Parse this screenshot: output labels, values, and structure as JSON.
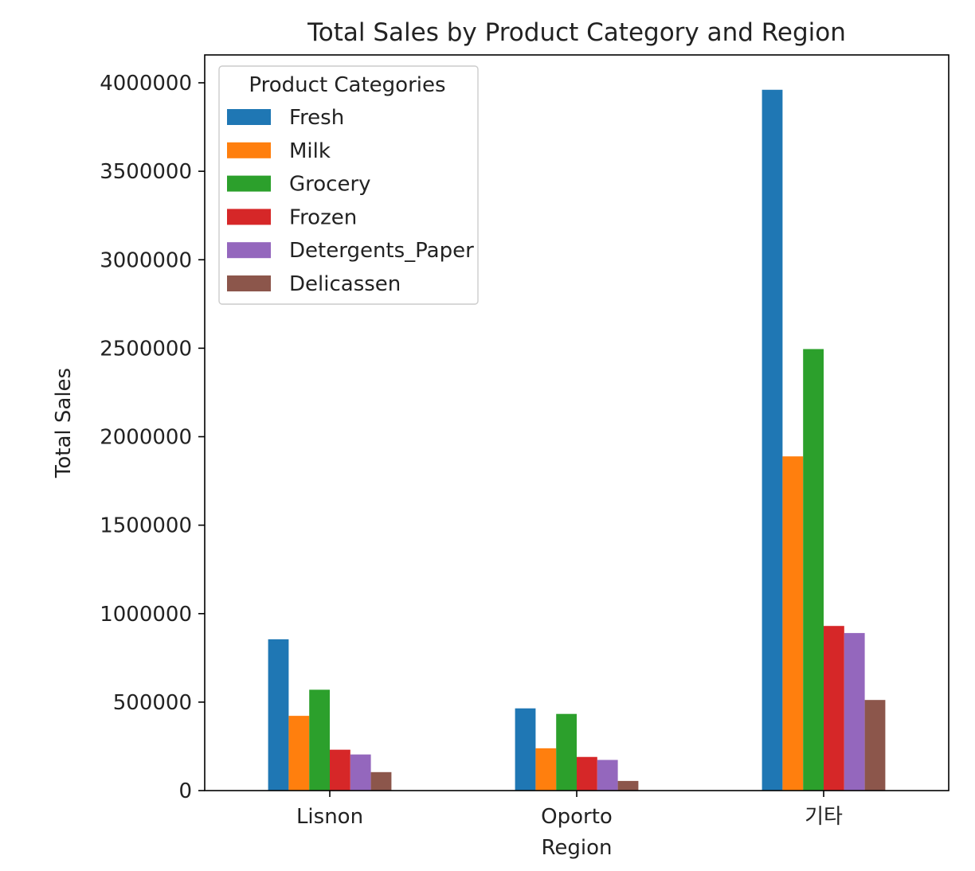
{
  "chart_data": {
    "type": "bar",
    "title": "Total Sales by Product Category and Region",
    "xlabel": "Region",
    "ylabel": "Total Sales",
    "categories": [
      "Lisnon",
      "Oporto",
      "기타"
    ],
    "ylim": [
      0,
      4150000
    ],
    "yticks": [
      0,
      500000,
      1000000,
      1500000,
      2000000,
      2500000,
      3000000,
      3500000,
      4000000
    ],
    "grid": false,
    "legend": {
      "title": "Product Categories",
      "placement": "top-left"
    },
    "series": [
      {
        "name": "Fresh",
        "color": "#1f77b4",
        "values": [
          854833,
          464721,
          3960577
        ]
      },
      {
        "name": "Milk",
        "color": "#ff7f0e",
        "values": [
          422454,
          239144,
          1888759
        ]
      },
      {
        "name": "Grocery",
        "color": "#2ca02c",
        "values": [
          570037,
          433274,
          2495251
        ]
      },
      {
        "name": "Frozen",
        "color": "#d62728",
        "values": [
          231026,
          190132,
          930492
        ]
      },
      {
        "name": "Detergents_Paper",
        "color": "#9467bd",
        "values": [
          204136,
          173311,
          890410
        ]
      },
      {
        "name": "Delicassen",
        "color": "#8c564b",
        "values": [
          104327,
          54506,
          512110
        ]
      }
    ]
  }
}
